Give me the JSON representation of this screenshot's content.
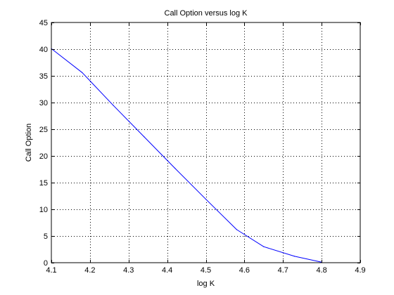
{
  "chart_data": {
    "type": "line",
    "title": "Call Option versus log K",
    "xlabel": "log K",
    "ylabel": "Call Option",
    "xlim": [
      4.1,
      4.9
    ],
    "ylim": [
      0,
      45
    ],
    "xticks": [
      4.1,
      4.2,
      4.3,
      4.4,
      4.5,
      4.6,
      4.7,
      4.8,
      4.9
    ],
    "yticks": [
      0,
      5,
      10,
      15,
      20,
      25,
      30,
      35,
      40,
      45
    ],
    "xtick_labels": [
      "4.1",
      "4.2",
      "4.3",
      "4.4",
      "4.5",
      "4.6",
      "4.7",
      "4.8",
      "4.9"
    ],
    "ytick_labels": [
      "0",
      "5",
      "10",
      "15",
      "20",
      "25",
      "30",
      "35",
      "40",
      "45"
    ],
    "grid": true,
    "grid_style": "dotted",
    "legend": false,
    "series": [
      {
        "color": "#0000ff",
        "x": [
          4.1,
          4.18,
          4.26,
          4.34,
          4.42,
          4.5,
          4.58,
          4.65,
          4.73,
          4.8
        ],
        "y": [
          40.1,
          35.6,
          29.5,
          23.6,
          17.7,
          11.9,
          6.2,
          3.0,
          1.2,
          0.1
        ]
      }
    ]
  }
}
